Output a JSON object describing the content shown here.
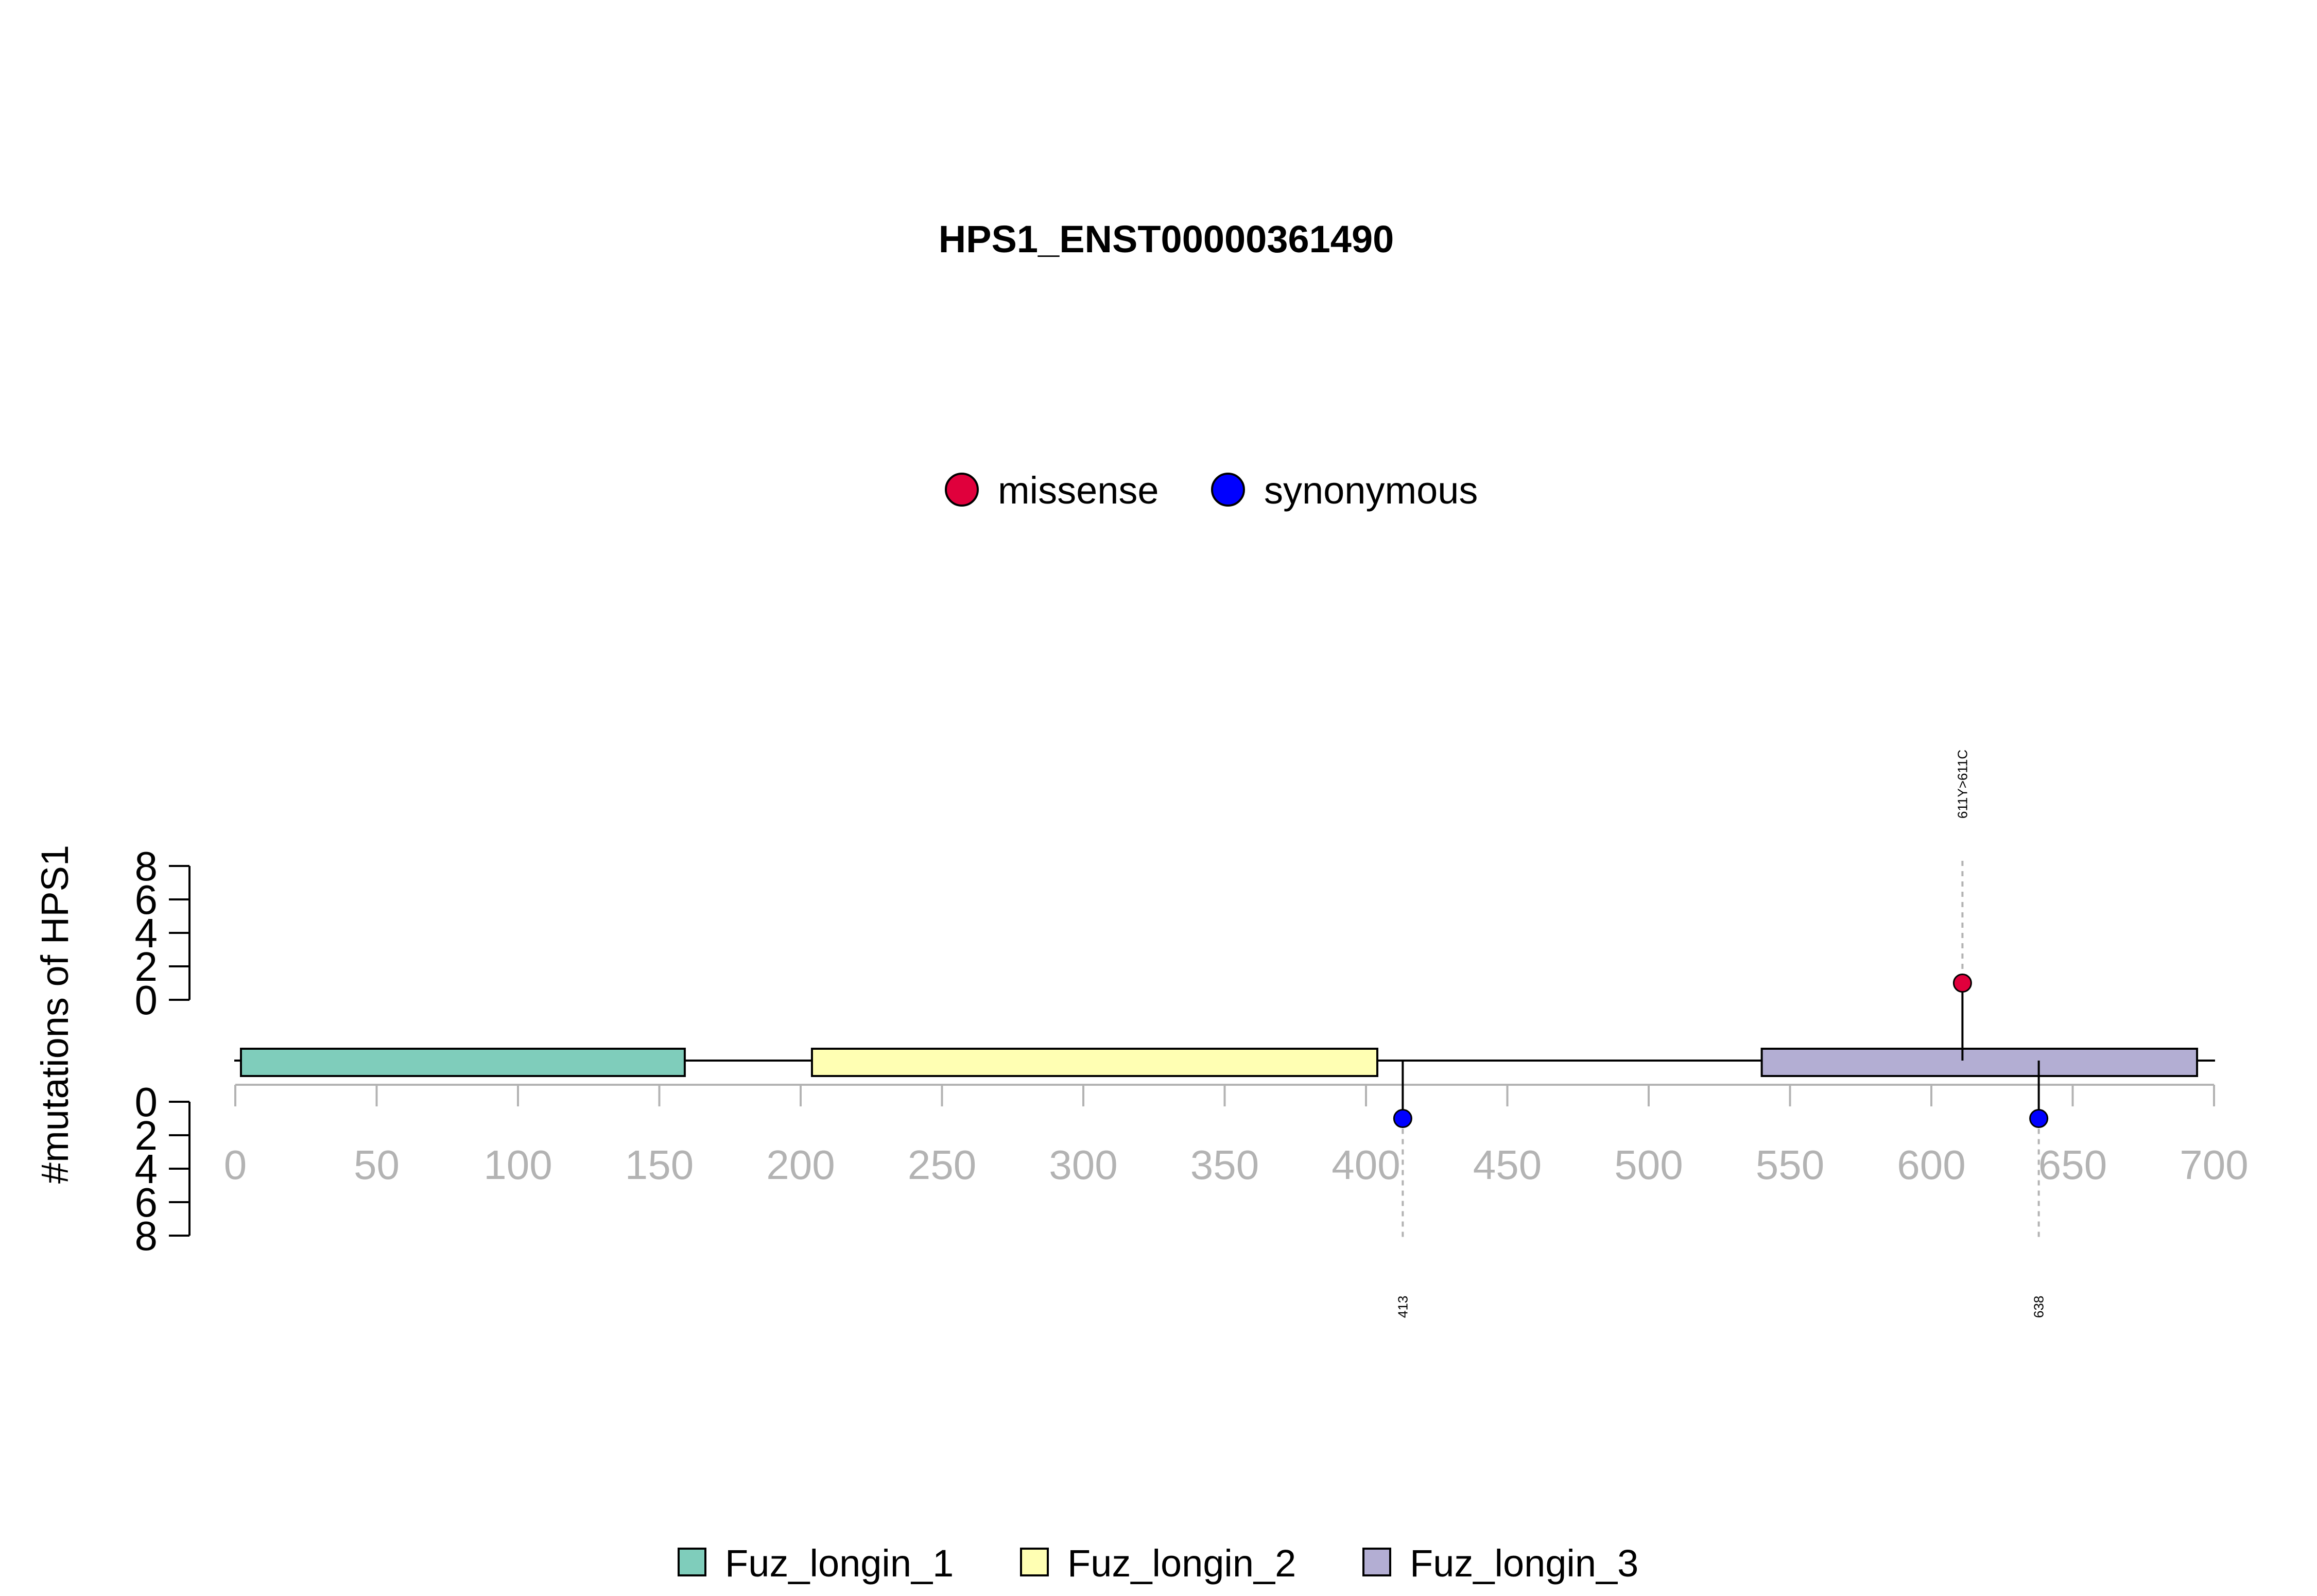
{
  "title": "HPS1_ENST00000361490",
  "colors": {
    "missense": "#e0003c",
    "synonymous": "#0000ff",
    "backbone": "#000000",
    "x_axis": "#b3b3b3",
    "dashed": "#b3b3b3"
  },
  "mutation_legend": [
    {
      "label": "missense",
      "color": "#e0003c"
    },
    {
      "label": "synonymous",
      "color": "#0000ff"
    }
  ],
  "domain_legend": [
    {
      "label": "Fuz_longin_1",
      "color": "#7fcdbb"
    },
    {
      "label": "Fuz_longin_2",
      "color": "#ffffb3"
    },
    {
      "label": "Fuz_longin_3",
      "color": "#b3aed3"
    }
  ],
  "chart_data": {
    "type": "lollipop",
    "title": "HPS1_ENST00000361490",
    "ylabel": "#mutations of HPS1",
    "protein_length": 700,
    "xlim": [
      0,
      700
    ],
    "x_ticks": [
      0,
      50,
      100,
      150,
      200,
      250,
      300,
      350,
      400,
      450,
      500,
      550,
      600,
      650,
      700
    ],
    "y_ticks": [
      0,
      2,
      4,
      6,
      8
    ],
    "ylim": [
      0,
      8
    ],
    "domains": [
      {
        "name": "Fuz_longin_1",
        "start": 2,
        "end": 159,
        "color": "#7fcdbb"
      },
      {
        "name": "Fuz_longin_2",
        "start": 204,
        "end": 404,
        "color": "#ffffb3"
      },
      {
        "name": "Fuz_longin_3",
        "start": 540,
        "end": 694,
        "color": "#b3aed3"
      }
    ],
    "mutations": [
      {
        "position": 611,
        "count": 1,
        "type": "missense",
        "label": "611Y>611C",
        "side": "top"
      },
      {
        "position": 413,
        "count": 1,
        "type": "synonymous",
        "label": "413",
        "side": "bottom"
      },
      {
        "position": 638,
        "count": 1,
        "type": "synonymous",
        "label": "638",
        "side": "bottom"
      }
    ]
  }
}
